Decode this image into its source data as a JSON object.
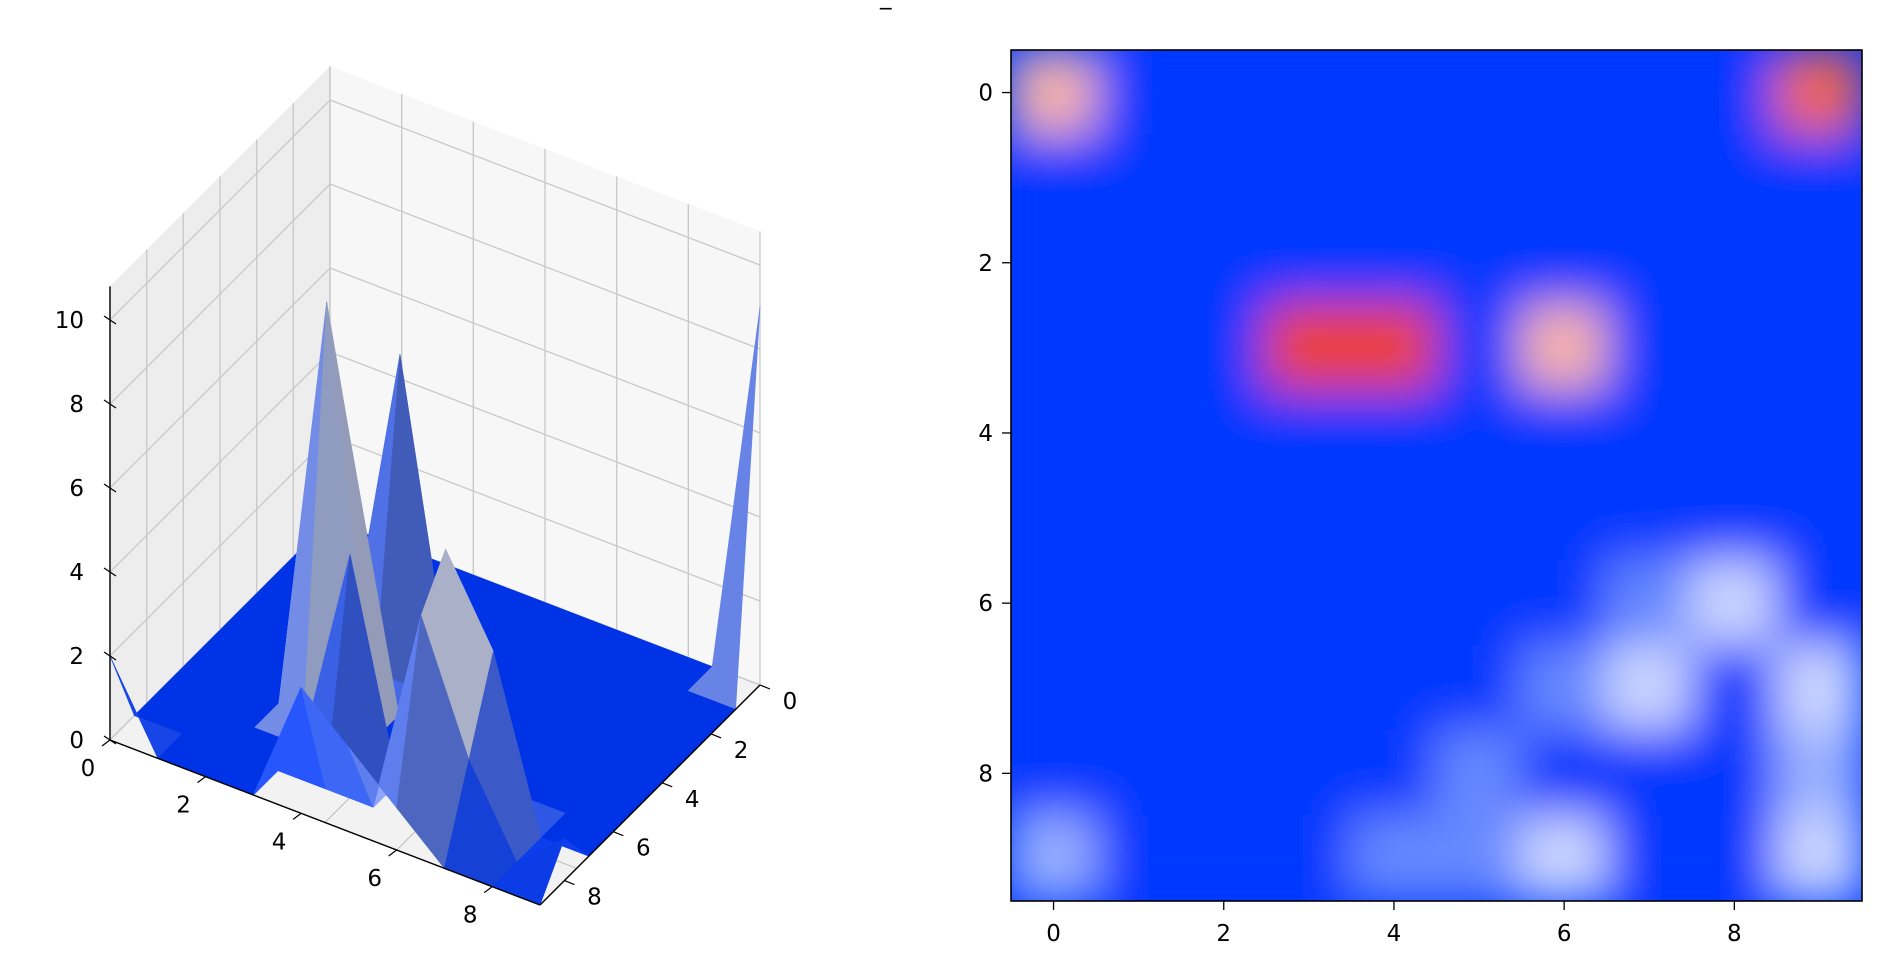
{
  "figure": {
    "caption": "_"
  },
  "colors": {
    "low": "#0039ff",
    "mid": "#ffffff",
    "high": "#ee4027",
    "pane": "#f5f5f5",
    "grid": "#c8c8c8"
  },
  "chart_data": [
    {
      "type": "surface",
      "title": "",
      "xlabel": "",
      "ylabel": "",
      "zlabel": "",
      "colormap": "bwr",
      "x_ticks": [
        "0",
        "2",
        "4",
        "6",
        "8"
      ],
      "y_ticks": [
        "0",
        "2",
        "4",
        "6",
        "8"
      ],
      "z_ticks": [
        "0",
        "2",
        "4",
        "6",
        "8",
        "10"
      ],
      "xlim": [
        0,
        9
      ],
      "ylim": [
        0,
        9
      ],
      "zlim": [
        0,
        10
      ],
      "grid": true,
      "z": [
        [
          2,
          0,
          0,
          0,
          0,
          0,
          0,
          0,
          0,
          0
        ],
        [
          0,
          0,
          0,
          0,
          0,
          0,
          0,
          0,
          0,
          0
        ],
        [
          0,
          0,
          0,
          0,
          0,
          0,
          0,
          0,
          0,
          0
        ],
        [
          0,
          0,
          0,
          10,
          6,
          0,
          7,
          0,
          0,
          0
        ],
        [
          3,
          0,
          5,
          0,
          0,
          0,
          0,
          0,
          0,
          0
        ],
        [
          2,
          0,
          0,
          0,
          0,
          0,
          0,
          0,
          0,
          0
        ],
        [
          1,
          5,
          6,
          0,
          0,
          0,
          0,
          0,
          0,
          0
        ],
        [
          0,
          2,
          4,
          0,
          0,
          0,
          0,
          0,
          0,
          0
        ],
        [
          0,
          0,
          0,
          0,
          0,
          0,
          0,
          0,
          0,
          0
        ],
        [
          0,
          1,
          0,
          0,
          0,
          0,
          0,
          0,
          0,
          9
        ]
      ]
    },
    {
      "type": "heatmap",
      "title": "",
      "xlabel": "",
      "ylabel": "",
      "colormap": "bwr",
      "interpolation": "bicubic",
      "x_ticks": [
        "0",
        "2",
        "4",
        "6",
        "8"
      ],
      "y_ticks": [
        "0",
        "2",
        "4",
        "6",
        "8"
      ],
      "xlim": [
        -0.5,
        9.5
      ],
      "ylim": [
        9.5,
        -0.5
      ],
      "value_range": [
        0,
        10
      ],
      "z": [
        [
          7,
          0,
          0,
          0,
          0,
          0,
          0,
          0,
          0,
          9
        ],
        [
          0,
          0,
          0,
          0,
          0,
          0,
          0,
          0,
          0,
          0
        ],
        [
          0,
          0,
          0,
          0,
          0,
          0,
          0,
          0,
          0,
          0
        ],
        [
          0,
          0,
          0,
          10,
          10,
          0,
          7,
          0,
          0,
          0
        ],
        [
          0,
          0,
          0,
          0,
          0,
          0,
          0,
          0,
          0,
          0
        ],
        [
          0,
          0,
          0,
          0,
          0,
          0,
          0,
          0,
          0,
          0
        ],
        [
          0,
          0,
          0,
          0,
          0,
          0,
          0,
          2,
          4,
          0
        ],
        [
          0,
          0,
          0,
          0,
          0,
          0,
          2,
          4,
          0,
          4
        ],
        [
          0,
          0,
          0,
          0,
          0,
          2,
          0,
          0,
          0,
          3
        ],
        [
          3,
          0,
          0,
          0,
          2,
          2,
          4,
          0,
          0,
          4
        ]
      ]
    }
  ]
}
